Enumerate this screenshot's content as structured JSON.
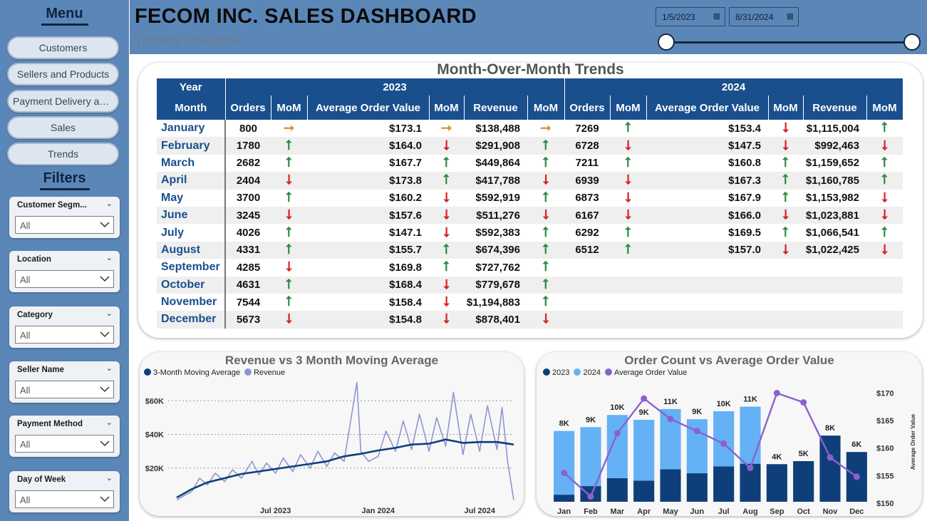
{
  "sidebar": {
    "menu_title": "Menu",
    "menu_items": [
      "Customers",
      "Sellers and Products",
      "Payment Delivery and..",
      "Sales",
      "Trends"
    ],
    "filters_title": "Filters",
    "filters": [
      {
        "label": "Customer Segm...",
        "value": "All"
      },
      {
        "label": "Location",
        "value": "All"
      },
      {
        "label": "Category",
        "value": "All"
      },
      {
        "label": "Seller Name",
        "value": "All"
      },
      {
        "label": "Payment Method",
        "value": "All"
      },
      {
        "label": "Day of Week",
        "value": "All"
      }
    ]
  },
  "header": {
    "title": "FECOM INC. SALES DASHBOARD",
    "subtitle": "Trends Insights",
    "date_start": "1/5/2023",
    "date_end": "8/31/2024"
  },
  "table": {
    "title": "Month-Over-Month Trends",
    "year_label": "Year",
    "month_label": "Month",
    "years": [
      "2023",
      "2024"
    ],
    "columns": [
      "Orders",
      "MoM",
      "Average Order Value",
      "MoM",
      "Revenue",
      "MoM"
    ],
    "rows": [
      {
        "month": "January",
        "y2023": [
          "800",
          "flat",
          "$173.1",
          "flat",
          "$138,488",
          "flat"
        ],
        "y2024": [
          "7269",
          "up",
          "$153.4",
          "down",
          "$1,115,004",
          "up"
        ]
      },
      {
        "month": "February",
        "y2023": [
          "1780",
          "up",
          "$164.0",
          "down",
          "$291,908",
          "up"
        ],
        "y2024": [
          "6728",
          "down",
          "$147.5",
          "down",
          "$992,463",
          "down"
        ]
      },
      {
        "month": "March",
        "y2023": [
          "2682",
          "up",
          "$167.7",
          "up",
          "$449,864",
          "up"
        ],
        "y2024": [
          "7211",
          "up",
          "$160.8",
          "up",
          "$1,159,652",
          "up"
        ]
      },
      {
        "month": "April",
        "y2023": [
          "2404",
          "down",
          "$173.8",
          "up",
          "$417,788",
          "down"
        ],
        "y2024": [
          "6939",
          "down",
          "$167.3",
          "up",
          "$1,160,785",
          "up"
        ]
      },
      {
        "month": "May",
        "y2023": [
          "3700",
          "up",
          "$160.2",
          "down",
          "$592,919",
          "up"
        ],
        "y2024": [
          "6873",
          "down",
          "$167.9",
          "up",
          "$1,153,982",
          "down"
        ]
      },
      {
        "month": "June",
        "y2023": [
          "3245",
          "down",
          "$157.6",
          "down",
          "$511,276",
          "down"
        ],
        "y2024": [
          "6167",
          "down",
          "$166.0",
          "down",
          "$1,023,881",
          "down"
        ]
      },
      {
        "month": "July",
        "y2023": [
          "4026",
          "up",
          "$147.1",
          "down",
          "$592,383",
          "up"
        ],
        "y2024": [
          "6292",
          "up",
          "$169.5",
          "up",
          "$1,066,541",
          "up"
        ]
      },
      {
        "month": "August",
        "y2023": [
          "4331",
          "up",
          "$155.7",
          "up",
          "$674,396",
          "up"
        ],
        "y2024": [
          "6512",
          "up",
          "$157.0",
          "down",
          "$1,022,425",
          "down"
        ]
      },
      {
        "month": "September",
        "y2023": [
          "4285",
          "down",
          "$169.8",
          "up",
          "$727,762",
          "up"
        ],
        "y2024": [
          "",
          "",
          "",
          "",
          "",
          ""
        ]
      },
      {
        "month": "October",
        "y2023": [
          "4631",
          "up",
          "$168.4",
          "down",
          "$779,678",
          "up"
        ],
        "y2024": [
          "",
          "",
          "",
          "",
          "",
          ""
        ]
      },
      {
        "month": "November",
        "y2023": [
          "7544",
          "up",
          "$158.4",
          "down",
          "$1,194,883",
          "up"
        ],
        "y2024": [
          "",
          "",
          "",
          "",
          "",
          ""
        ]
      },
      {
        "month": "December",
        "y2023": [
          "5673",
          "down",
          "$154.8",
          "down",
          "$878,401",
          "down"
        ],
        "y2024": [
          "",
          "",
          "",
          "",
          "",
          ""
        ]
      }
    ]
  },
  "chart_data": [
    {
      "type": "line",
      "title": "Revenue vs 3 Month Moving Average",
      "series": [
        {
          "name": "3-Month Moving Average",
          "color": "#0f3f7a",
          "points": [
            [
              "2023-01-05",
              2500
            ],
            [
              "2023-02-01",
              7500
            ],
            [
              "2023-03-01",
              11500
            ],
            [
              "2023-04-01",
              14000
            ],
            [
              "2023-05-01",
              16500
            ],
            [
              "2023-06-01",
              18000
            ],
            [
              "2023-07-01",
              19500
            ],
            [
              "2023-08-01",
              21000
            ],
            [
              "2023-09-01",
              22500
            ],
            [
              "2023-10-01",
              24000
            ],
            [
              "2023-11-01",
              27000
            ],
            [
              "2023-12-01",
              28500
            ],
            [
              "2024-01-01",
              30500
            ],
            [
              "2024-02-01",
              32000
            ],
            [
              "2024-03-01",
              34000
            ],
            [
              "2024-04-01",
              34500
            ],
            [
              "2024-05-01",
              37000
            ],
            [
              "2024-06-01",
              35000
            ],
            [
              "2024-07-01",
              35500
            ],
            [
              "2024-08-01",
              35500
            ],
            [
              "2024-08-31",
              34000
            ]
          ]
        },
        {
          "name": "Revenue",
          "color": "#8e95d4",
          "points": [
            [
              "2023-01-05",
              1000
            ],
            [
              "2023-01-20",
              4000
            ],
            [
              "2023-02-01",
              6000
            ],
            [
              "2023-02-15",
              14000
            ],
            [
              "2023-03-01",
              10000
            ],
            [
              "2023-03-15",
              17000
            ],
            [
              "2023-04-01",
              12000
            ],
            [
              "2023-04-15",
              19000
            ],
            [
              "2023-05-01",
              14000
            ],
            [
              "2023-05-20",
              24000
            ],
            [
              "2023-06-01",
              16000
            ],
            [
              "2023-06-15",
              23000
            ],
            [
              "2023-07-01",
              17000
            ],
            [
              "2023-07-15",
              26000
            ],
            [
              "2023-08-01",
              18000
            ],
            [
              "2023-08-15",
              28000
            ],
            [
              "2023-09-01",
              20000
            ],
            [
              "2023-09-15",
              30000
            ],
            [
              "2023-10-01",
              21000
            ],
            [
              "2023-10-15",
              29000
            ],
            [
              "2023-11-01",
              24000
            ],
            [
              "2023-11-24",
              71000
            ],
            [
              "2023-12-01",
              30000
            ],
            [
              "2023-12-15",
              24000
            ],
            [
              "2024-01-01",
              27000
            ],
            [
              "2024-01-15",
              42000
            ],
            [
              "2024-02-01",
              30000
            ],
            [
              "2024-02-15",
              48000
            ],
            [
              "2024-03-01",
              31000
            ],
            [
              "2024-03-15",
              52000
            ],
            [
              "2024-04-01",
              30000
            ],
            [
              "2024-04-15",
              50000
            ],
            [
              "2024-05-01",
              33000
            ],
            [
              "2024-05-15",
              65000
            ],
            [
              "2024-06-01",
              28000
            ],
            [
              "2024-06-15",
              52000
            ],
            [
              "2024-07-01",
              30000
            ],
            [
              "2024-07-15",
              57000
            ],
            [
              "2024-08-01",
              31000
            ],
            [
              "2024-08-10",
              56000
            ],
            [
              "2024-08-20",
              24000
            ],
            [
              "2024-08-31",
              1000
            ]
          ]
        }
      ],
      "x_ticks": [
        "Jul 2023",
        "Jan 2024",
        "Jul 2024"
      ],
      "y_ticks": [
        "$20K",
        "$40K",
        "$60K"
      ],
      "ylim": [
        0,
        72000
      ],
      "legend": "top-left",
      "grid": "dotted horizontal"
    },
    {
      "type": "bar",
      "title": "Order Count vs Average Order Value",
      "categories": [
        "Jan",
        "Feb",
        "Mar",
        "Apr",
        "May",
        "Jun",
        "Jul",
        "Aug",
        "Sep",
        "Oct",
        "Nov",
        "Dec"
      ],
      "series": [
        {
          "name": "2023",
          "color": "#0f3f7a",
          "values": [
            800,
            1780,
            2682,
            2404,
            3700,
            3245,
            4026,
            4331,
            4285,
            4631,
            7544,
            5673
          ]
        },
        {
          "name": "2024",
          "color": "#64b2f5",
          "values": [
            7269,
            6728,
            7211,
            6939,
            6873,
            6167,
            6292,
            6512,
            0,
            0,
            0,
            0
          ]
        },
        {
          "name": "Average Order Value",
          "color": "#8a61cf",
          "values": [
            155.5,
            151.2,
            162.7,
            169.0,
            165.3,
            163.1,
            160.8,
            156.4,
            170.0,
            168.3,
            158.3,
            154.8
          ]
        }
      ],
      "bar_labels": [
        "8K",
        "9K",
        "10K",
        "9K",
        "11K",
        "9K",
        "10K",
        "11K",
        "4K",
        "5K",
        "8K",
        "6K"
      ],
      "y2_ticks": [
        "$150",
        "$155",
        "$160",
        "$165",
        "$170"
      ],
      "y2_label": "Average Order Value",
      "y2lim": [
        150,
        172
      ],
      "ylim": [
        0,
        13000
      ],
      "legend": "top-left"
    }
  ]
}
